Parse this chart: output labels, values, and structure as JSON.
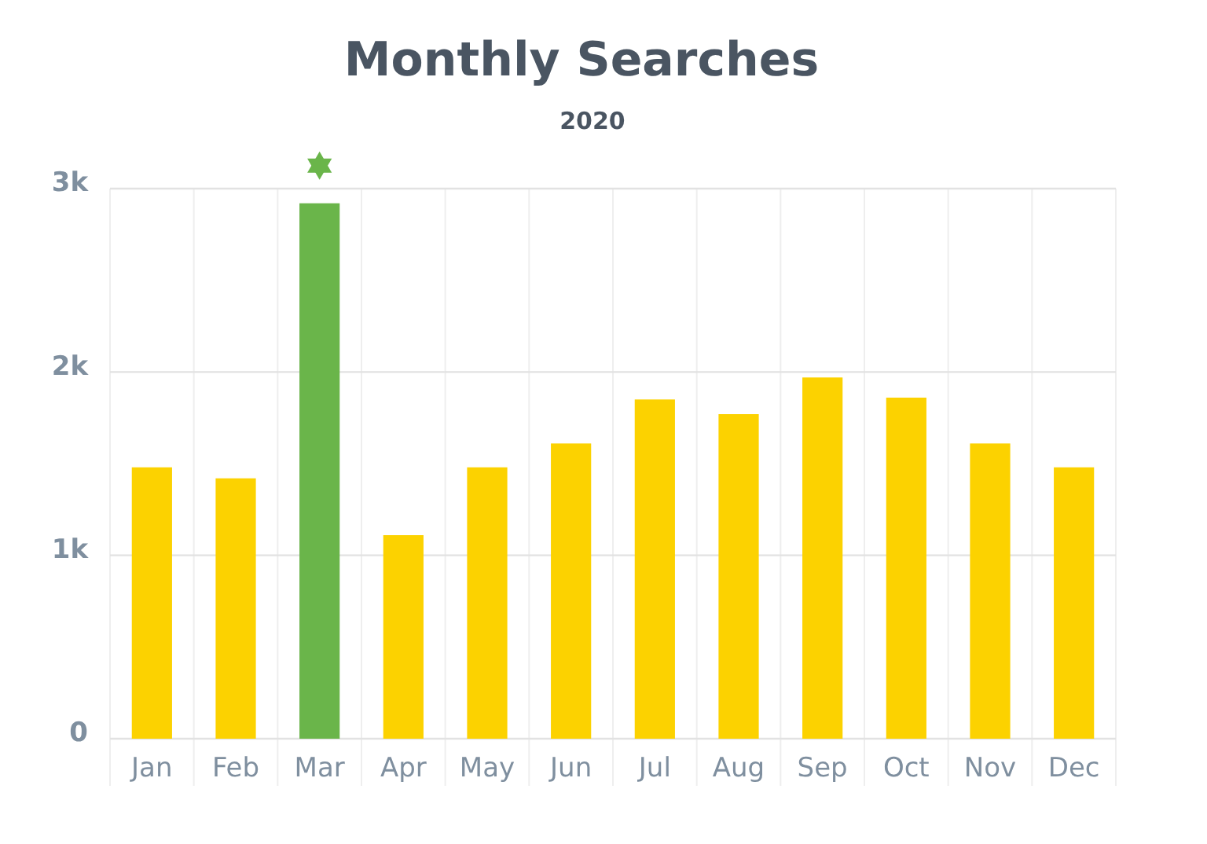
{
  "chart_data": {
    "type": "bar",
    "title": "Monthly Searches",
    "subtitle": "2020",
    "categories": [
      "Jan",
      "Feb",
      "Mar",
      "Apr",
      "May",
      "Jun",
      "Jul",
      "Aug",
      "Sep",
      "Oct",
      "Nov",
      "Dec"
    ],
    "values": [
      1480,
      1420,
      2920,
      1110,
      1480,
      1610,
      1850,
      1770,
      1970,
      1860,
      1610,
      1480
    ],
    "colors": [
      "#fcd200",
      "#fcd200",
      "#6ab54a",
      "#fcd200",
      "#fcd200",
      "#fcd200",
      "#fcd200",
      "#fcd200",
      "#fcd200",
      "#fcd200",
      "#fcd200",
      "#fcd200"
    ],
    "ylim": [
      0,
      3000
    ],
    "yticks": [
      {
        "value": 0,
        "label": "0"
      },
      {
        "value": 1000,
        "label": "1k"
      },
      {
        "value": 2000,
        "label": "2k"
      },
      {
        "value": 3000,
        "label": "3k"
      }
    ],
    "grid": true
  }
}
